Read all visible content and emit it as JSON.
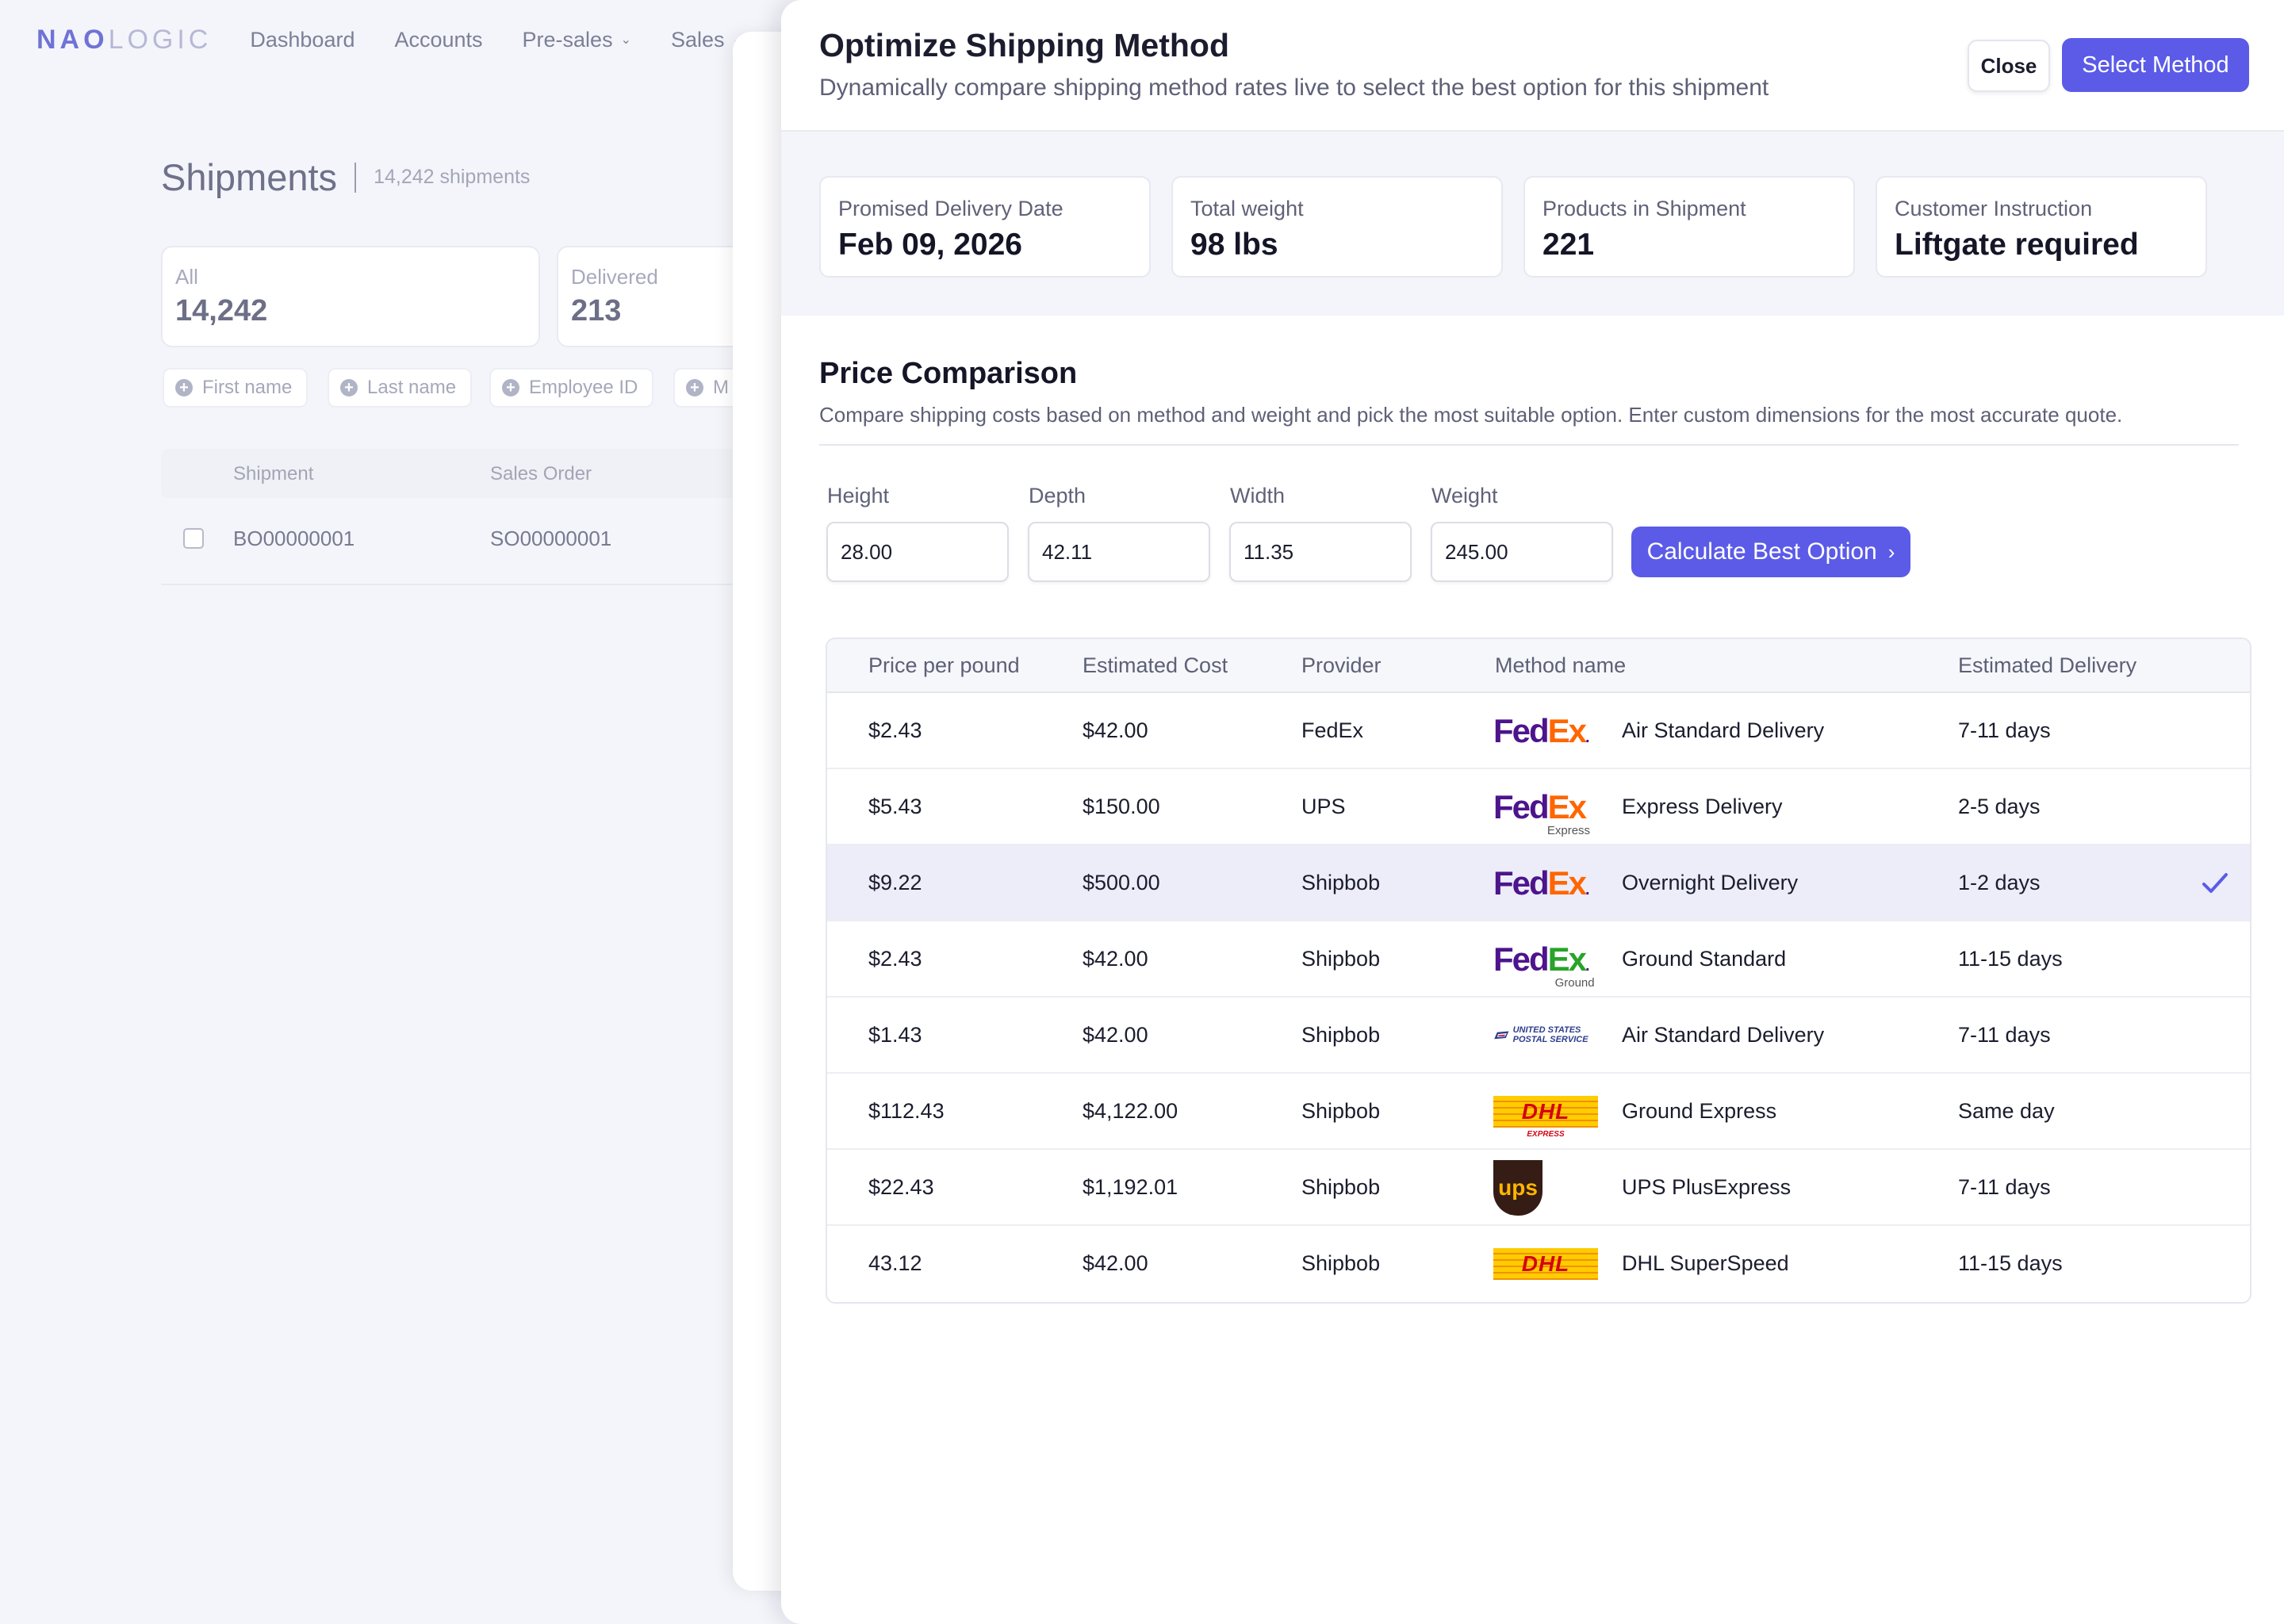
{
  "background": {
    "logo": {
      "strong": "NAO",
      "rest": "LOGIC"
    },
    "nav": [
      {
        "label": "Dashboard",
        "has_dropdown": false
      },
      {
        "label": "Accounts",
        "has_dropdown": false
      },
      {
        "label": "Pre-sales",
        "has_dropdown": true
      },
      {
        "label": "Sales",
        "has_dropdown": true
      }
    ],
    "page_title": "Shipments",
    "page_count": "14,242 shipments",
    "stats": [
      {
        "label": "All",
        "value": "14,242"
      },
      {
        "label": "Delivered",
        "value": "213"
      }
    ],
    "filters": [
      "First name",
      "Last name",
      "Employee ID",
      "M"
    ],
    "table": {
      "columns": [
        "Shipment",
        "Sales Order"
      ],
      "rows": [
        {
          "shipment": "BO00000001",
          "sales_order": "SO00000001"
        }
      ]
    }
  },
  "modal": {
    "title": "Optimize Shipping Method",
    "subtitle": "Dynamically compare shipping method rates live to select the best option for this shipment",
    "close_label": "Close",
    "select_label": "Select Method",
    "summary": [
      {
        "label": "Promised Delivery Date",
        "value": "Feb 09, 2026"
      },
      {
        "label": "Total weight",
        "value": "98 lbs"
      },
      {
        "label": "Products in Shipment",
        "value": "221"
      },
      {
        "label": "Customer Instruction",
        "value": "Liftgate required"
      }
    ],
    "section_title": "Price Comparison",
    "section_desc": "Compare shipping costs based on method and weight and pick the most suitable option. Enter custom dimensions for the most accurate quote.",
    "fields": [
      {
        "label": "Height",
        "value": "28.00"
      },
      {
        "label": "Depth",
        "value": "42.11"
      },
      {
        "label": "Width",
        "value": "11.35"
      },
      {
        "label": "Weight",
        "value": "245.00"
      }
    ],
    "calc_label": "Calculate Best Option",
    "table": {
      "columns": [
        "Price per pound",
        "Estimated Cost",
        "Provider",
        "Method name",
        "Estimated Delivery"
      ],
      "rows": [
        {
          "ppp": "$2.43",
          "cost": "$42.00",
          "provider": "FedEx",
          "logo": "fedex",
          "logo_sub": "",
          "method": "Air Standard Delivery",
          "delivery": "7-11 days",
          "selected": false
        },
        {
          "ppp": "$5.43",
          "cost": "$150.00",
          "provider": "UPS",
          "logo": "fedex-express",
          "logo_sub": "Express",
          "method": "Express Delivery",
          "delivery": "2-5 days",
          "selected": false
        },
        {
          "ppp": "$9.22",
          "cost": "$500.00",
          "provider": "Shipbob",
          "logo": "fedex",
          "logo_sub": "",
          "method": "Overnight Delivery",
          "delivery": "1-2 days",
          "selected": true
        },
        {
          "ppp": "$2.43",
          "cost": "$42.00",
          "provider": "Shipbob",
          "logo": "fedex-ground",
          "logo_sub": "Ground",
          "method": "Ground Standard",
          "delivery": "11-15 days",
          "selected": false
        },
        {
          "ppp": "$1.43",
          "cost": "$42.00",
          "provider": "Shipbob",
          "logo": "usps",
          "logo_sub": "UNITED STATES POSTAL SERVICE",
          "method": "Air Standard Delivery",
          "delivery": "7-11 days",
          "selected": false
        },
        {
          "ppp": "$112.43",
          "cost": "$4,122.00",
          "provider": "Shipbob",
          "logo": "dhl-express",
          "logo_sub": "EXPRESS",
          "method": "Ground Express",
          "delivery": "Same day",
          "selected": false
        },
        {
          "ppp": "$22.43",
          "cost": "$1,192.01",
          "provider": "Shipbob",
          "logo": "ups",
          "logo_sub": "",
          "method": "UPS PlusExpress",
          "delivery": "7-11 days",
          "selected": false
        },
        {
          "ppp": "43.12",
          "cost": "$42.00",
          "provider": "Shipbob",
          "logo": "dhl",
          "logo_sub": "",
          "method": "DHL SuperSpeed",
          "delivery": "11-15 days",
          "selected": false
        }
      ]
    }
  },
  "colors": {
    "accent": "#5b5be8",
    "selected_row": "#ecedf9",
    "fedex_purple": "#4d148c",
    "fedex_orange": "#ff6600",
    "fedex_green": "#29a329",
    "dhl_yellow": "#ffcc00",
    "dhl_red": "#d40511",
    "ups_brown": "#351c15",
    "ups_gold": "#ffb500",
    "usps_blue": "#2c3e8c"
  }
}
